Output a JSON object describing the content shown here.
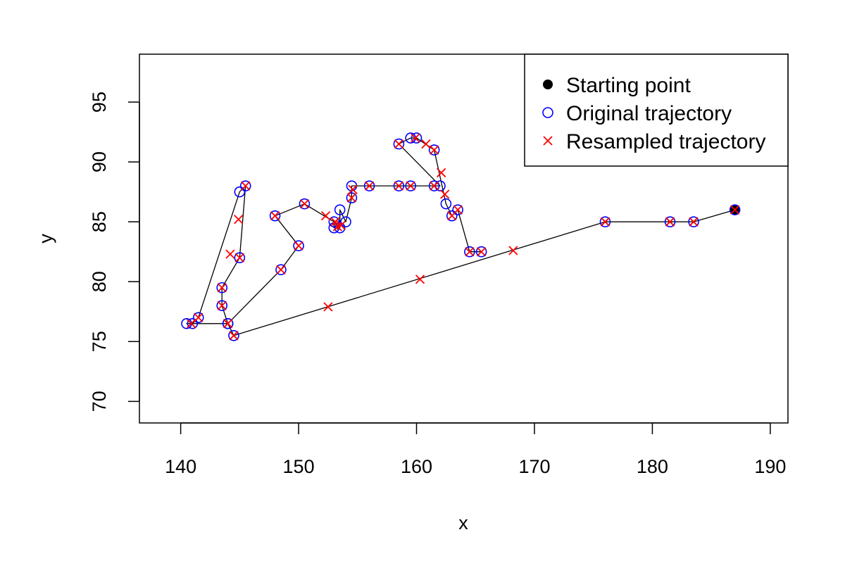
{
  "chart_data": {
    "type": "scatter",
    "title": "",
    "xlabel": "x",
    "ylabel": "y",
    "xlim": [
      136.5,
      191.5
    ],
    "ylim": [
      68.2,
      99.0
    ],
    "xticks": [
      140,
      150,
      160,
      170,
      180,
      190
    ],
    "yticks": [
      70,
      75,
      80,
      85,
      90,
      95
    ],
    "grid": false,
    "legend_position": "top-right",
    "colors": {
      "start": "#000000",
      "original": "#0000ff",
      "resampled": "#ff0000",
      "path": "#000000"
    },
    "legend": [
      {
        "label": "Starting point",
        "symbol": "filled-circle",
        "color": "#000000"
      },
      {
        "label": "Original trajectory",
        "symbol": "open-circle",
        "color": "#0000ff"
      },
      {
        "label": "Resampled trajectory",
        "symbol": "cross",
        "color": "#ff0000"
      }
    ],
    "starting_point": {
      "x": 187,
      "y": 86
    },
    "series": [
      {
        "name": "Original trajectory",
        "x": [
          187,
          183.5,
          181.5,
          176,
          144.5,
          144,
          143.5,
          143.5,
          145,
          145.5,
          145,
          141.5,
          141,
          140.5,
          144,
          148.5,
          150,
          148,
          150.5,
          153,
          153,
          153.5,
          153.5,
          154,
          154.5,
          154.5,
          156,
          158.5,
          159.5,
          161.5,
          162,
          158.5,
          159.5,
          160,
          161.5,
          162.5,
          163,
          163.5,
          164.5,
          165.5
        ],
        "y": [
          86,
          85,
          85,
          85,
          75.5,
          76.5,
          78,
          79.5,
          82,
          88,
          87.5,
          77,
          76.5,
          76.5,
          76.5,
          81,
          83,
          85.5,
          86.5,
          85,
          84.5,
          84.5,
          86,
          85,
          87,
          88,
          88,
          88,
          88,
          88,
          88,
          91.5,
          92,
          92,
          91,
          86.5,
          85.5,
          86,
          82.5,
          82.5
        ]
      },
      {
        "name": "Resampled trajectory",
        "x": [
          187,
          183.5,
          181.5,
          176,
          168.2,
          160.3,
          152.5,
          144.5,
          144,
          143.5,
          143.5,
          144.2,
          144.9,
          145.5,
          145,
          141.5,
          140.9,
          144,
          148.5,
          150,
          148,
          150.5,
          152.3,
          153.1,
          153.3,
          153.6,
          154.6,
          154.5,
          156,
          158.5,
          159.5,
          161.5,
          162.4,
          162.1,
          161.5,
          160.8,
          159.9,
          158.5,
          163,
          163.5,
          164.5,
          165.5
        ],
        "y": [
          86,
          85,
          85,
          85,
          82.6,
          80.2,
          77.9,
          75.5,
          76.5,
          78,
          79.5,
          82.3,
          85.2,
          88,
          82,
          77,
          76.5,
          76.5,
          81,
          83,
          85.5,
          86.5,
          85.5,
          85,
          84.6,
          84.7,
          87.7,
          87,
          88,
          88,
          88,
          88,
          87.3,
          89.1,
          91,
          91.5,
          92,
          91.5,
          85.5,
          86,
          82.5,
          82.5
        ]
      }
    ]
  }
}
